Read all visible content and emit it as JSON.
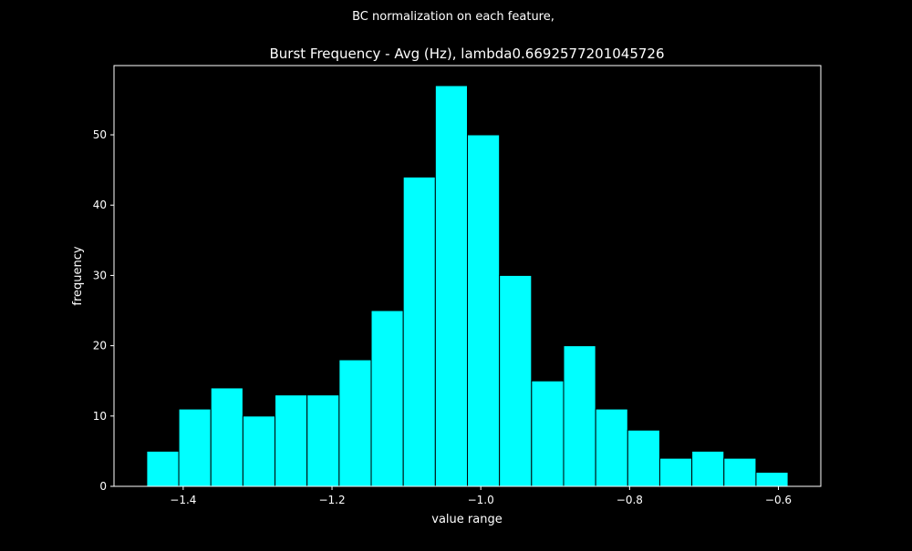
{
  "suptitle": "BC normalization on each feature,",
  "chart_data": {
    "type": "bar",
    "title": "Burst Frequency - Avg (Hz), lambda0.6692577201045726",
    "xlabel": "value range",
    "ylabel": "frequency",
    "xlim": [
      -1.493,
      -0.543
    ],
    "ylim": [
      0,
      59.85
    ],
    "bin_width": 0.0431,
    "bin_starts": [
      -1.449,
      -1.4059,
      -1.3628,
      -1.3197,
      -1.2766,
      -1.2335,
      -1.1904,
      -1.1473,
      -1.1042,
      -1.0611,
      -1.018,
      -0.9749,
      -0.9318,
      -0.8887,
      -0.8456,
      -0.8025,
      -0.7594,
      -0.7163,
      -0.6732,
      -0.6301
    ],
    "values": [
      5,
      11,
      14,
      10,
      13,
      13,
      18,
      25,
      44,
      57,
      50,
      30,
      15,
      20,
      11,
      8,
      4,
      5,
      4,
      2
    ],
    "xticks": [
      -1.4,
      -1.2,
      -1.0,
      -0.8,
      -0.6
    ],
    "xtick_labels": [
      "−1.4",
      "−1.2",
      "−1.0",
      "−0.8",
      "−0.6"
    ],
    "yticks": [
      0,
      10,
      20,
      30,
      40,
      50
    ],
    "ytick_labels": [
      "0",
      "10",
      "20",
      "30",
      "40",
      "50"
    ],
    "grid": false,
    "bar_color": "#00ffff",
    "edge_color": "#000000",
    "background_color": "#000000",
    "text_color": "#ffffff"
  }
}
